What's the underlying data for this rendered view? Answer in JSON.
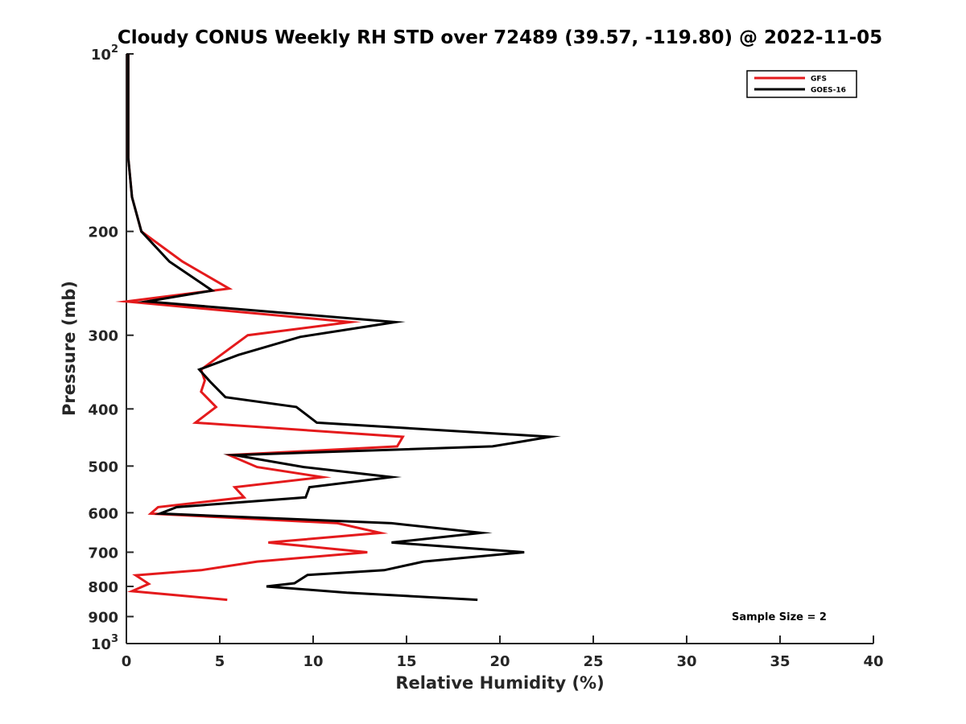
{
  "chart_data": {
    "type": "line",
    "title": "Cloudy CONUS Weekly RH STD over 72489 (39.57, -119.80) @ 2022-11-05",
    "xlabel": "Relative Humidity (%)",
    "ylabel": "Pressure (mb)",
    "xlim": [
      0,
      40
    ],
    "ylim": [
      1000,
      100
    ],
    "y_scale": "log",
    "y_reversed": true,
    "grid": false,
    "legend_position": "top-right",
    "x_ticks": [
      {
        "v": 0,
        "label": "0"
      },
      {
        "v": 5,
        "label": "5"
      },
      {
        "v": 10,
        "label": "10"
      },
      {
        "v": 15,
        "label": "15"
      },
      {
        "v": 20,
        "label": "20"
      },
      {
        "v": 25,
        "label": "25"
      },
      {
        "v": 30,
        "label": "30"
      },
      {
        "v": 35,
        "label": "35"
      },
      {
        "v": 40,
        "label": "40"
      }
    ],
    "y_ticks": [
      {
        "v": 100,
        "base": "10",
        "exp": "2"
      },
      {
        "v": 200,
        "label": "200"
      },
      {
        "v": 300,
        "label": "300"
      },
      {
        "v": 400,
        "label": "400"
      },
      {
        "v": 500,
        "label": "500"
      },
      {
        "v": 600,
        "label": "600"
      },
      {
        "v": 700,
        "label": "700"
      },
      {
        "v": 800,
        "label": "800"
      },
      {
        "v": 900,
        "label": "900"
      },
      {
        "v": 1000,
        "base": "10",
        "exp": "3"
      }
    ],
    "annotation": "Sample Size = 2",
    "series": [
      {
        "name": "GFS",
        "color": "#e41a1c",
        "points": [
          [
            0.1,
            100
          ],
          [
            0.1,
            150
          ],
          [
            0.3,
            175
          ],
          [
            0.8,
            200
          ],
          [
            3.0,
            225
          ],
          [
            5.5,
            250
          ],
          [
            0.0,
            263
          ],
          [
            12.0,
            285
          ],
          [
            6.5,
            300
          ],
          [
            4.0,
            343
          ],
          [
            4.2,
            358
          ],
          [
            4.0,
            374
          ],
          [
            4.8,
            397
          ],
          [
            3.7,
            422
          ],
          [
            14.8,
            446
          ],
          [
            14.5,
            463
          ],
          [
            5.5,
            479
          ],
          [
            7.0,
            502
          ],
          [
            10.5,
            522
          ],
          [
            5.8,
            543
          ],
          [
            6.3,
            565
          ],
          [
            1.7,
            587
          ],
          [
            1.3,
            602
          ],
          [
            11.3,
            625
          ],
          [
            13.6,
            649
          ],
          [
            7.6,
            674
          ],
          [
            12.9,
            700
          ],
          [
            7.0,
            726
          ],
          [
            4.0,
            751
          ],
          [
            0.5,
            766
          ],
          [
            1.2,
            792
          ],
          [
            0.3,
            815
          ],
          [
            5.4,
            843
          ]
        ]
      },
      {
        "name": "GOES-16",
        "color": "#000000",
        "points": [
          [
            0.1,
            100
          ],
          [
            0.1,
            150
          ],
          [
            0.3,
            175
          ],
          [
            0.8,
            200
          ],
          [
            2.3,
            225
          ],
          [
            4.6,
            252
          ],
          [
            1.1,
            263
          ],
          [
            14.4,
            285
          ],
          [
            9.3,
            302
          ],
          [
            6.0,
            324
          ],
          [
            3.9,
            343
          ],
          [
            4.5,
            360
          ],
          [
            5.3,
            382
          ],
          [
            9.1,
            397
          ],
          [
            10.2,
            422
          ],
          [
            22.7,
            446
          ],
          [
            19.6,
            463
          ],
          [
            5.8,
            479
          ],
          [
            9.5,
            502
          ],
          [
            14.2,
            522
          ],
          [
            9.8,
            543
          ],
          [
            9.6,
            565
          ],
          [
            2.7,
            587
          ],
          [
            1.8,
            602
          ],
          [
            14.2,
            625
          ],
          [
            19.0,
            649
          ],
          [
            14.2,
            674
          ],
          [
            21.3,
            700
          ],
          [
            15.9,
            726
          ],
          [
            13.8,
            751
          ],
          [
            9.7,
            765
          ],
          [
            9.0,
            790
          ],
          [
            7.5,
            800
          ],
          [
            11.8,
            820
          ],
          [
            18.8,
            843
          ]
        ]
      }
    ]
  }
}
